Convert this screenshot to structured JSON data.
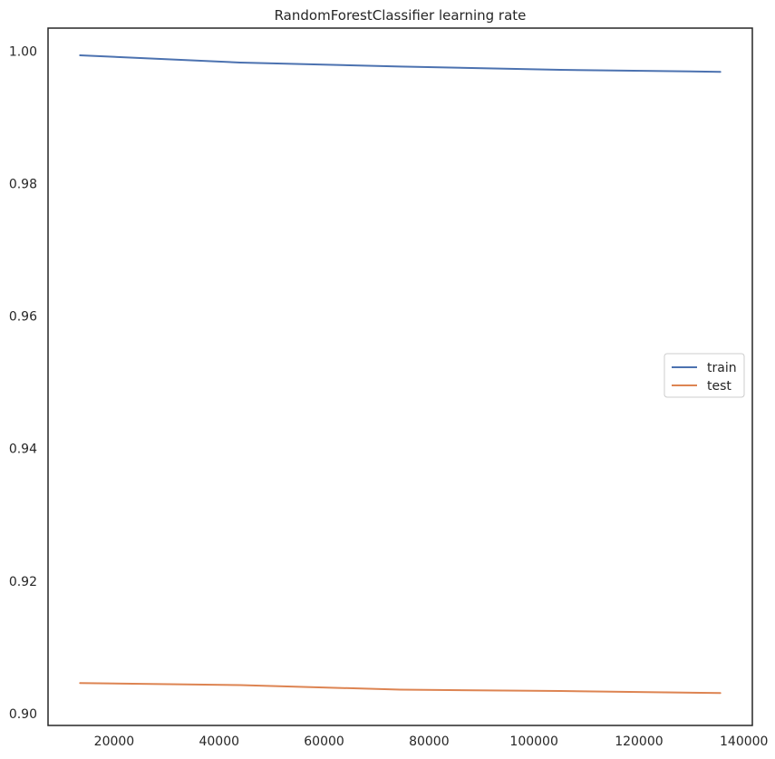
{
  "chart_data": {
    "type": "line",
    "title": "RandomForestClassifier learning rate",
    "xlabel": "",
    "ylabel": "",
    "x": [
      13500,
      44000,
      74500,
      105000,
      135500
    ],
    "series": [
      {
        "name": "train",
        "color": "#4c72b0",
        "values": [
          0.9994,
          0.9983,
          0.9977,
          0.9972,
          0.9969
        ]
      },
      {
        "name": "test",
        "color": "#dd8452",
        "values": [
          0.9046,
          0.9043,
          0.9036,
          0.9034,
          0.9031
        ]
      }
    ],
    "xlim": [
      7400,
      141600
    ],
    "ylim": [
      0.8982,
      1.0035
    ],
    "xticks": [
      20000,
      40000,
      60000,
      80000,
      100000,
      120000,
      140000
    ],
    "xtick_labels": [
      "20000",
      "40000",
      "60000",
      "80000",
      "100000",
      "120000",
      "140000"
    ],
    "yticks": [
      0.9,
      0.92,
      0.94,
      0.96,
      0.98,
      1.0
    ],
    "ytick_labels": [
      "0.90",
      "0.92",
      "0.94",
      "0.96",
      "0.98",
      "1.00"
    ],
    "grid": false,
    "legend_position": "center-right"
  }
}
